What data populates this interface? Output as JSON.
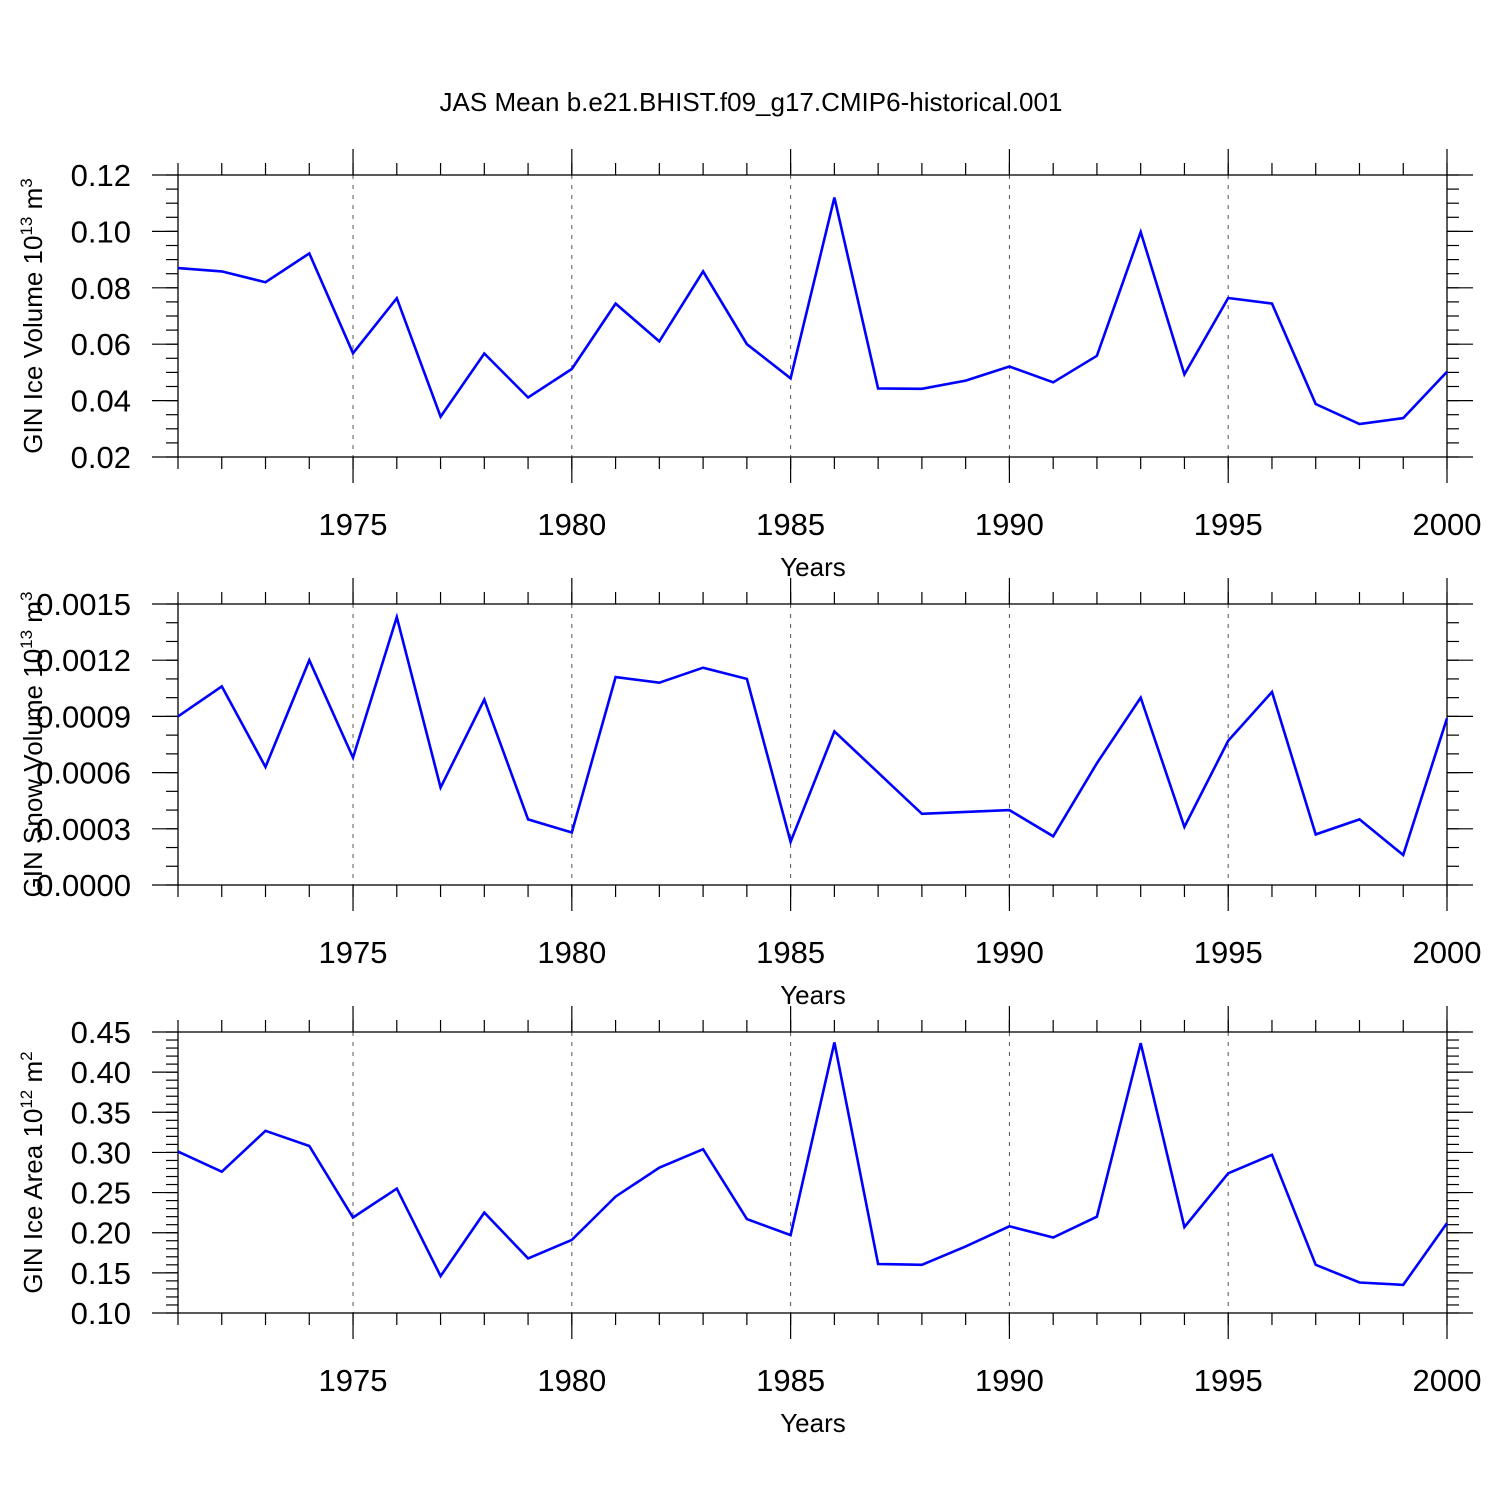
{
  "figure": {
    "title": "JAS Mean b.e21.BHIST.f09_g17.CMIP6-historical.001",
    "line_color": "#0000ff"
  },
  "chart_data": [
    {
      "type": "line",
      "ylabel": "GIN Ice Volume 10",
      "ylabel_exp": "13",
      "ylabel_unit": " m",
      "ylabel_unit_exp": "3",
      "xlabel": "Years",
      "xlim": [
        1971,
        2000
      ],
      "ylim": [
        0.02,
        0.12
      ],
      "grid": "dashed vertical at major x ticks",
      "xticks": [
        1975,
        1980,
        1985,
        1990,
        1995,
        2000
      ],
      "xtick_labels": [
        "1975",
        "1980",
        "1985",
        "1990",
        "1995",
        "2000"
      ],
      "yticks": [
        0.02,
        0.04,
        0.06,
        0.08,
        0.1,
        0.12
      ],
      "ytick_labels": [
        "0.02",
        "0.04",
        "0.06",
        "0.08",
        "0.10",
        "0.12"
      ],
      "y_minor_step": 0.005,
      "x": [
        1971,
        1972,
        1973,
        1974,
        1975,
        1976,
        1977,
        1978,
        1979,
        1980,
        1981,
        1982,
        1983,
        1984,
        1985,
        1986,
        1987,
        1988,
        1989,
        1990,
        1991,
        1992,
        1993,
        1994,
        1995,
        1996,
        1997,
        1998,
        1999,
        2000
      ],
      "series": [
        {
          "values": [
            0.087,
            0.0858,
            0.082,
            0.0922,
            0.0568,
            0.0763,
            0.0343,
            0.0567,
            0.0411,
            0.0512,
            0.0744,
            0.061,
            0.0858,
            0.06,
            0.0479,
            0.112,
            0.0443,
            0.0442,
            0.0471,
            0.0521,
            0.0465,
            0.0559,
            0.0998,
            0.0493,
            0.0764,
            0.0744,
            0.0388,
            0.0317,
            0.0338,
            0.0502
          ]
        }
      ]
    },
    {
      "type": "line",
      "ylabel": "GIN Snow Volume 10",
      "ylabel_exp": "13",
      "ylabel_unit": " m",
      "ylabel_unit_exp": "3",
      "xlabel": "Years",
      "xlim": [
        1971,
        2000
      ],
      "ylim": [
        0.0,
        0.0015
      ],
      "grid": "dashed vertical at major x ticks",
      "xticks": [
        1975,
        1980,
        1985,
        1990,
        1995,
        2000
      ],
      "xtick_labels": [
        "1975",
        "1980",
        "1985",
        "1990",
        "1995",
        "2000"
      ],
      "yticks": [
        0.0,
        0.0003,
        0.0006,
        0.0009,
        0.0012,
        0.0015
      ],
      "ytick_labels": [
        "0.0000",
        "0.0003",
        "0.0006",
        "0.0009",
        "0.0012",
        "0.0015"
      ],
      "y_minor_step": 0.0001,
      "x": [
        1971,
        1972,
        1973,
        1974,
        1975,
        1976,
        1977,
        1978,
        1979,
        1980,
        1981,
        1982,
        1983,
        1984,
        1985,
        1986,
        1987,
        1988,
        1989,
        1990,
        1991,
        1992,
        1993,
        1994,
        1995,
        1996,
        1997,
        1998,
        1999,
        2000
      ],
      "series": [
        {
          "values": [
            0.0009,
            0.00106,
            0.00063,
            0.0012,
            0.00068,
            0.00143,
            0.00052,
            0.00099,
            0.00035,
            0.00028,
            0.00111,
            0.00108,
            0.00116,
            0.0011,
            0.00023,
            0.00082,
            0.0006,
            0.00038,
            0.00039,
            0.0004,
            0.00026,
            0.00065,
            0.001,
            0.00031,
            0.00077,
            0.00103,
            0.00027,
            0.00035,
            0.00016,
            0.00089
          ]
        }
      ]
    },
    {
      "type": "line",
      "ylabel": "GIN Ice Area 10",
      "ylabel_exp": "12",
      "ylabel_unit": " m",
      "ylabel_unit_exp": "2",
      "xlabel": "Years",
      "xlim": [
        1971,
        2000
      ],
      "ylim": [
        0.1,
        0.45
      ],
      "grid": "dashed vertical at major x ticks",
      "xticks": [
        1975,
        1980,
        1985,
        1990,
        1995,
        2000
      ],
      "xtick_labels": [
        "1975",
        "1980",
        "1985",
        "1990",
        "1995",
        "2000"
      ],
      "yticks": [
        0.1,
        0.15,
        0.2,
        0.25,
        0.3,
        0.35,
        0.4,
        0.45
      ],
      "ytick_labels": [
        "0.10",
        "0.15",
        "0.20",
        "0.25",
        "0.30",
        "0.35",
        "0.40",
        "0.45"
      ],
      "y_minor_step": 0.01,
      "x": [
        1971,
        1972,
        1973,
        1974,
        1975,
        1976,
        1977,
        1978,
        1979,
        1980,
        1981,
        1982,
        1983,
        1984,
        1985,
        1986,
        1987,
        1988,
        1989,
        1990,
        1991,
        1992,
        1993,
        1994,
        1995,
        1996,
        1997,
        1998,
        1999,
        2000
      ],
      "series": [
        {
          "values": [
            0.301,
            0.276,
            0.327,
            0.308,
            0.219,
            0.255,
            0.146,
            0.225,
            0.168,
            0.191,
            0.245,
            0.281,
            0.304,
            0.217,
            0.197,
            0.437,
            0.161,
            0.16,
            0.183,
            0.208,
            0.194,
            0.22,
            0.436,
            0.207,
            0.274,
            0.297,
            0.16,
            0.138,
            0.135,
            0.212
          ]
        }
      ]
    }
  ]
}
